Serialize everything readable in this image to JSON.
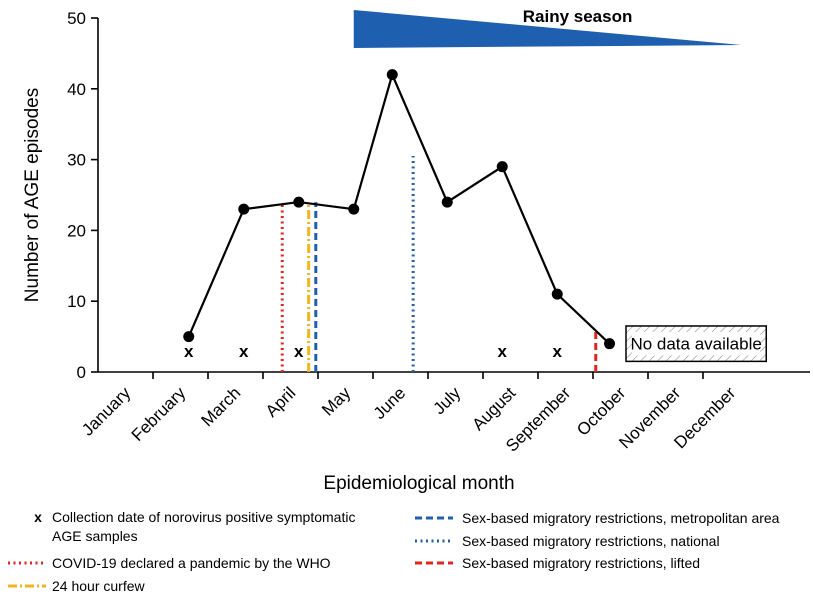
{
  "chart_data": {
    "type": "line",
    "xlabel": "Epidemiological month",
    "ylabel": "Number of AGE episodes",
    "ylim": [
      0,
      50
    ],
    "yticks": [
      0,
      10,
      20,
      30,
      40,
      50
    ],
    "months": [
      "January",
      "February",
      "March",
      "April",
      "May",
      "June",
      "July",
      "August",
      "September",
      "October",
      "November",
      "December"
    ],
    "series": [
      {
        "name": "AGE episodes",
        "points": [
          {
            "x": 1.65,
            "y": 5
          },
          {
            "x": 2.65,
            "y": 23
          },
          {
            "x": 3.65,
            "y": 24
          },
          {
            "x": 4.65,
            "y": 23
          },
          {
            "x": 5.35,
            "y": 42
          },
          {
            "x": 6.35,
            "y": 24
          },
          {
            "x": 7.35,
            "y": 29
          },
          {
            "x": 8.35,
            "y": 11
          },
          {
            "x": 9.3,
            "y": 4
          }
        ]
      }
    ],
    "norovirus_marker": "x",
    "norovirus_dates": [
      1.65,
      2.65,
      3.65,
      7.35,
      8.35
    ],
    "events": [
      {
        "key": "pandemic",
        "x": 3.35,
        "ymax": 24,
        "color": "#e0261f",
        "style": "dotted",
        "label": "COVID-19 declared a pandemic by the WHO"
      },
      {
        "key": "curfew",
        "x": 3.83,
        "ymax": 24,
        "color": "#f2b61c",
        "style": "dashdot",
        "label": "24 hour curfew"
      },
      {
        "key": "metro",
        "x": 3.96,
        "ymax": 24,
        "color": "#1f5fb0",
        "style": "dashed",
        "label": "Sex-based migratory restrictions, metropolitan area"
      },
      {
        "key": "national",
        "x": 5.73,
        "ymax": 30.5,
        "color": "#1f5fb0",
        "style": "dotted",
        "label": "Sex-based migratory restrictions, national"
      },
      {
        "key": "lifted",
        "x": 9.05,
        "ymax": 6,
        "color": "#e0261f",
        "style": "dashed",
        "label": "Sex-based migratory restrictions, lifted"
      }
    ],
    "rainy_season": {
      "label": "Rainy season",
      "start": 4.65,
      "end": 11.7,
      "color": "#1f5fb0"
    },
    "no_data": {
      "label": "No data available",
      "start": 9.6,
      "end": 12.15,
      "ymin": 1.5,
      "ymax": 6.5
    },
    "legend_x_label": "Collection date of norovirus positive symptomatic AGE samples"
  }
}
